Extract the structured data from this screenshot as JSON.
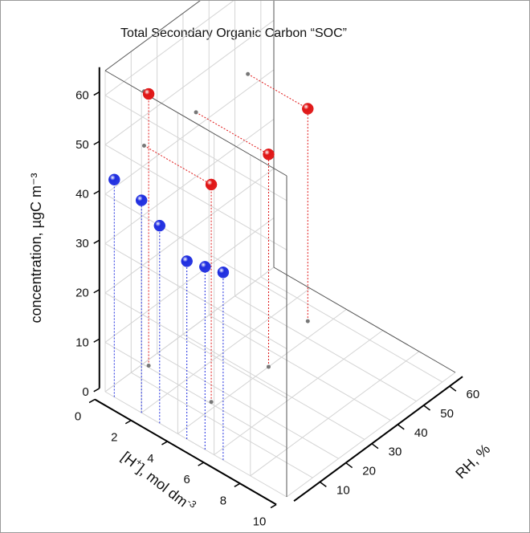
{
  "chart_data": {
    "type": "scatter",
    "title": "Total Secondary Organic Carbon “SOC”",
    "xlabel": {
      "main": "[H",
      "sup": "+",
      "rest": "], mol dm",
      "exp": "-3"
    },
    "ylabel": "RH, %",
    "zlabel": "concentration, µgC m⁻³",
    "x_ticks": [
      "0",
      "2",
      "4",
      "6",
      "8",
      "10"
    ],
    "y_ticks": [
      "10",
      "20",
      "30",
      "40",
      "50",
      "60"
    ],
    "z_ticks": [
      "0",
      "10",
      "20",
      "30",
      "40",
      "50",
      "60"
    ],
    "xlim": [
      0,
      10
    ],
    "ylim": [
      0,
      65
    ],
    "zlim": [
      0,
      65
    ],
    "series": [
      {
        "color": "#1f2ee0",
        "points": [
          {
            "x": 0.5,
            "y": 0,
            "z": 44
          },
          {
            "x": 2.0,
            "y": 0,
            "z": 43
          },
          {
            "x": 3.0,
            "y": 0,
            "z": 40
          },
          {
            "x": 4.5,
            "y": 0,
            "z": 36
          },
          {
            "x": 5.5,
            "y": 0,
            "z": 37
          },
          {
            "x": 6.5,
            "y": 0,
            "z": 38
          }
        ]
      },
      {
        "color": "#e01515",
        "points": [
          {
            "x": 0.25,
            "y": 15,
            "z": 55
          },
          {
            "x": 3.7,
            "y": 15,
            "z": 44
          },
          {
            "x": 4.0,
            "y": 35,
            "z": 43
          },
          {
            "x": 3.3,
            "y": 55,
            "z": 43
          }
        ]
      }
    ],
    "grid": true
  }
}
